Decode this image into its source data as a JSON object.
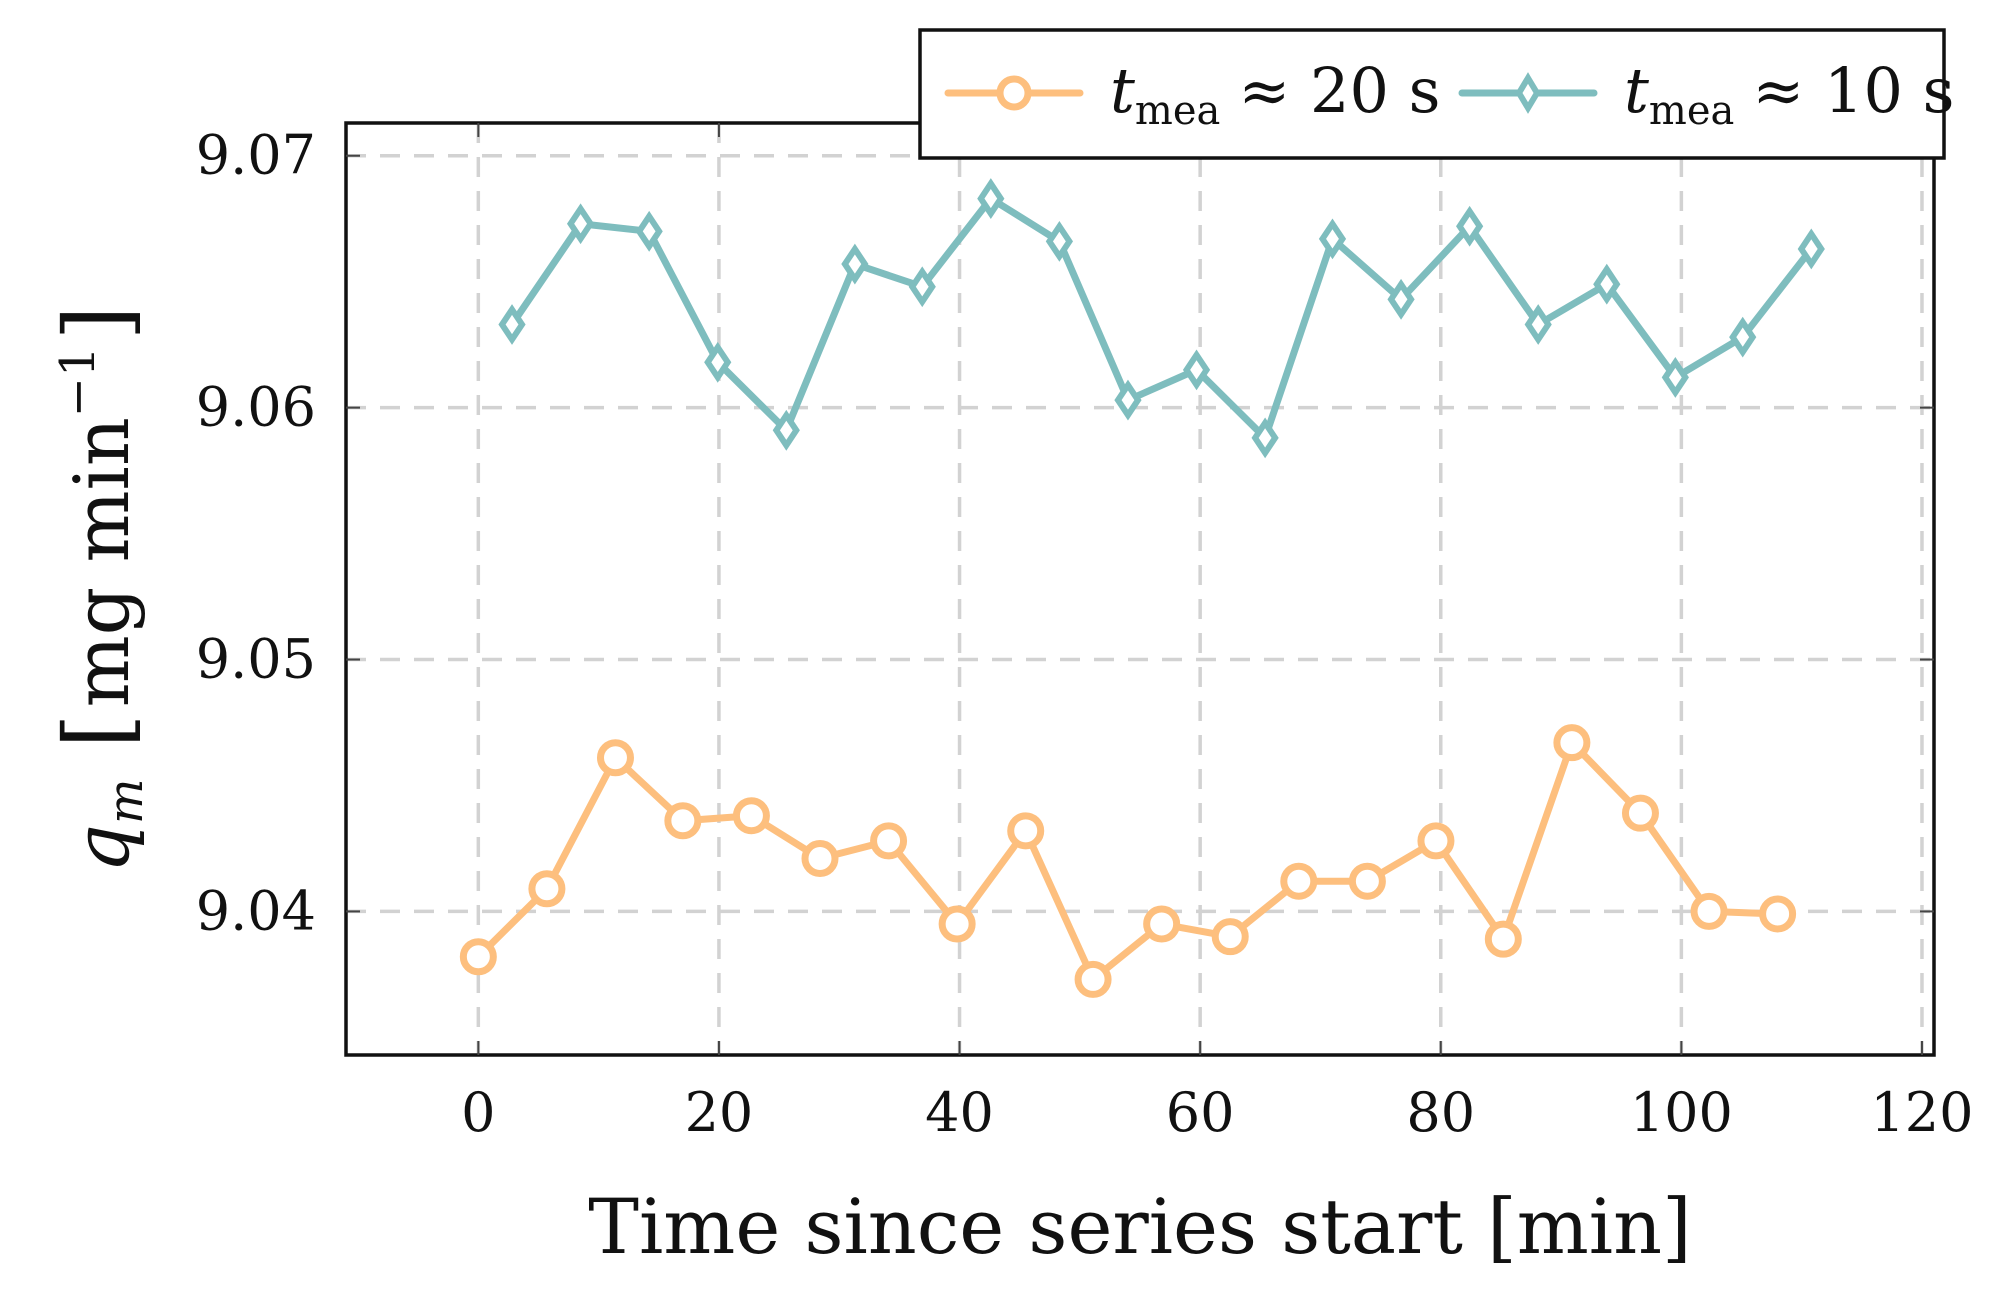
{
  "chart_data": {
    "type": "line",
    "title": "",
    "xlabel": "Time since series start [min]",
    "ylabel": "q_m [mg min^-1]",
    "ylabel_parts": {
      "symbol": "q",
      "subscript": "m",
      "unit_open": "[",
      "unit": "mg min",
      "exponent": "−1",
      "unit_close": "]"
    },
    "xlim": [
      -11,
      121
    ],
    "ylim": [
      9.0343,
      9.0713
    ],
    "xticks": [
      0,
      20,
      40,
      60,
      80,
      100,
      120
    ],
    "xtick_labels": [
      "0",
      "20",
      "40",
      "60",
      "80",
      "100",
      "120"
    ],
    "yticks": [
      9.04,
      9.05,
      9.06,
      9.07
    ],
    "ytick_labels": [
      "9.04",
      "9.05",
      "9.06",
      "9.07"
    ],
    "grid": true,
    "legend_position": "top-right, above plot area",
    "series": [
      {
        "name": "t_mea ≈ 20 s",
        "label_symbol": "t",
        "label_subscript": "mea",
        "label_rest": "≈ 20 s",
        "color": "#FDBF7E",
        "marker": "circle",
        "x": [
          0,
          5.7,
          11.4,
          17.0,
          22.7,
          28.4,
          34.1,
          39.8,
          45.5,
          51.1,
          56.8,
          62.5,
          68.2,
          73.9,
          79.6,
          85.2,
          90.9,
          96.6,
          102.3,
          108.0
        ],
        "y": [
          9.0382,
          9.0409,
          9.0461,
          9.0436,
          9.0438,
          9.0421,
          9.0428,
          9.0395,
          9.0432,
          9.0373,
          9.0395,
          9.039,
          9.0412,
          9.0412,
          9.0428,
          9.0389,
          9.0467,
          9.0439,
          9.04,
          9.0399
        ]
      },
      {
        "name": "t_mea ≈ 10 s",
        "label_symbol": "t",
        "label_subscript": "mea",
        "label_rest": "≈ 10 s",
        "color": "#7EBDBE",
        "marker": "diamond",
        "x": [
          2.8,
          8.5,
          14.2,
          19.9,
          25.6,
          31.3,
          36.9,
          42.6,
          48.3,
          54.0,
          59.7,
          65.4,
          71.0,
          76.7,
          82.4,
          88.1,
          93.8,
          99.5,
          105.1,
          110.8
        ],
        "y": [
          9.0633,
          9.0673,
          9.067,
          9.0618,
          9.0591,
          9.0657,
          9.0648,
          9.0683,
          9.0666,
          9.0603,
          9.0615,
          9.0588,
          9.0667,
          9.0643,
          9.0672,
          9.0633,
          9.0649,
          9.0612,
          9.0628,
          9.0663
        ]
      }
    ]
  }
}
